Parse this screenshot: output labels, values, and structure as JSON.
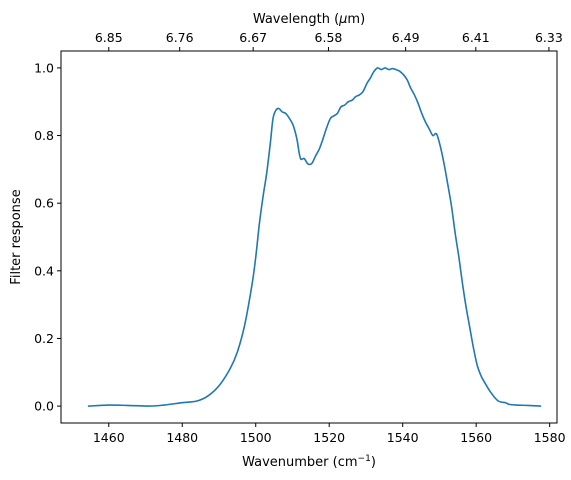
{
  "chart_data": {
    "type": "line",
    "xlabel": "Wavenumber (cm",
    "xlabel_sup": "−1",
    "xlabel_close": ")",
    "ylabel": "Filter response",
    "top_xlabel_prefix": "Wavelength (",
    "top_xlabel_unit": "μ",
    "top_xlabel_suffix": "m)",
    "xlim": [
      1447,
      1582
    ],
    "ylim": [
      -0.05,
      1.05
    ],
    "x_ticks": [
      1460,
      1480,
      1500,
      1520,
      1540,
      1560,
      1580
    ],
    "y_ticks": [
      0.0,
      0.2,
      0.4,
      0.6,
      0.8,
      1.0
    ],
    "top_ticks": [
      {
        "x": 1460.0,
        "label": "6.85"
      },
      {
        "x": 1479.3,
        "label": "6.76"
      },
      {
        "x": 1499.3,
        "label": "6.67"
      },
      {
        "x": 1519.8,
        "label": "6.58"
      },
      {
        "x": 1540.8,
        "label": "6.49"
      },
      {
        "x": 1559.9,
        "label": "6.41"
      },
      {
        "x": 1579.8,
        "label": "6.33"
      }
    ],
    "line_color": "#1f77b4",
    "x": [
      1454.5,
      1460,
      1465,
      1471,
      1475,
      1480,
      1484,
      1487,
      1490,
      1493,
      1495,
      1497,
      1499,
      1500,
      1501,
      1502,
      1503,
      1504,
      1504.7,
      1505.5,
      1506.3,
      1507.2,
      1508.2,
      1509.2,
      1510.2,
      1511.2,
      1511.8,
      1512.3,
      1513.2,
      1514.2,
      1515.3,
      1516.3,
      1517.3,
      1518.3,
      1519.2,
      1520.3,
      1521.2,
      1522.2,
      1523.2,
      1524.2,
      1525.2,
      1526.3,
      1527.2,
      1528.2,
      1529.2,
      1530.3,
      1531.2,
      1532.2,
      1533.2,
      1534.2,
      1535.2,
      1536.3,
      1537.2,
      1538.2,
      1539.2,
      1540.2,
      1541.2,
      1542.2,
      1543.2,
      1544.2,
      1545.2,
      1546.2,
      1547.2,
      1548.2,
      1549.2,
      1550.2,
      1551.2,
      1552.2,
      1553.3,
      1554.3,
      1555.3,
      1556.3,
      1557.3,
      1558.3,
      1559.3,
      1560.3,
      1561.3,
      1562.3,
      1564,
      1566,
      1568,
      1569,
      1571,
      1574,
      1577.5
    ],
    "y": [
      0.0,
      0.003,
      0.002,
      0.0,
      0.003,
      0.01,
      0.015,
      0.03,
      0.06,
      0.11,
      0.16,
      0.24,
      0.36,
      0.44,
      0.54,
      0.62,
      0.69,
      0.78,
      0.85,
      0.875,
      0.88,
      0.87,
      0.865,
      0.85,
      0.83,
      0.79,
      0.75,
      0.73,
      0.732,
      0.716,
      0.718,
      0.74,
      0.76,
      0.79,
      0.82,
      0.85,
      0.858,
      0.865,
      0.885,
      0.89,
      0.9,
      0.905,
      0.915,
      0.92,
      0.93,
      0.955,
      0.97,
      0.99,
      1.0,
      0.995,
      1.0,
      0.995,
      0.998,
      0.995,
      0.99,
      0.98,
      0.965,
      0.94,
      0.92,
      0.895,
      0.865,
      0.84,
      0.82,
      0.8,
      0.805,
      0.77,
      0.72,
      0.66,
      0.59,
      0.51,
      0.44,
      0.36,
      0.29,
      0.23,
      0.17,
      0.12,
      0.09,
      0.07,
      0.04,
      0.015,
      0.01,
      0.005,
      0.003,
      0.002,
      0.0
    ]
  }
}
